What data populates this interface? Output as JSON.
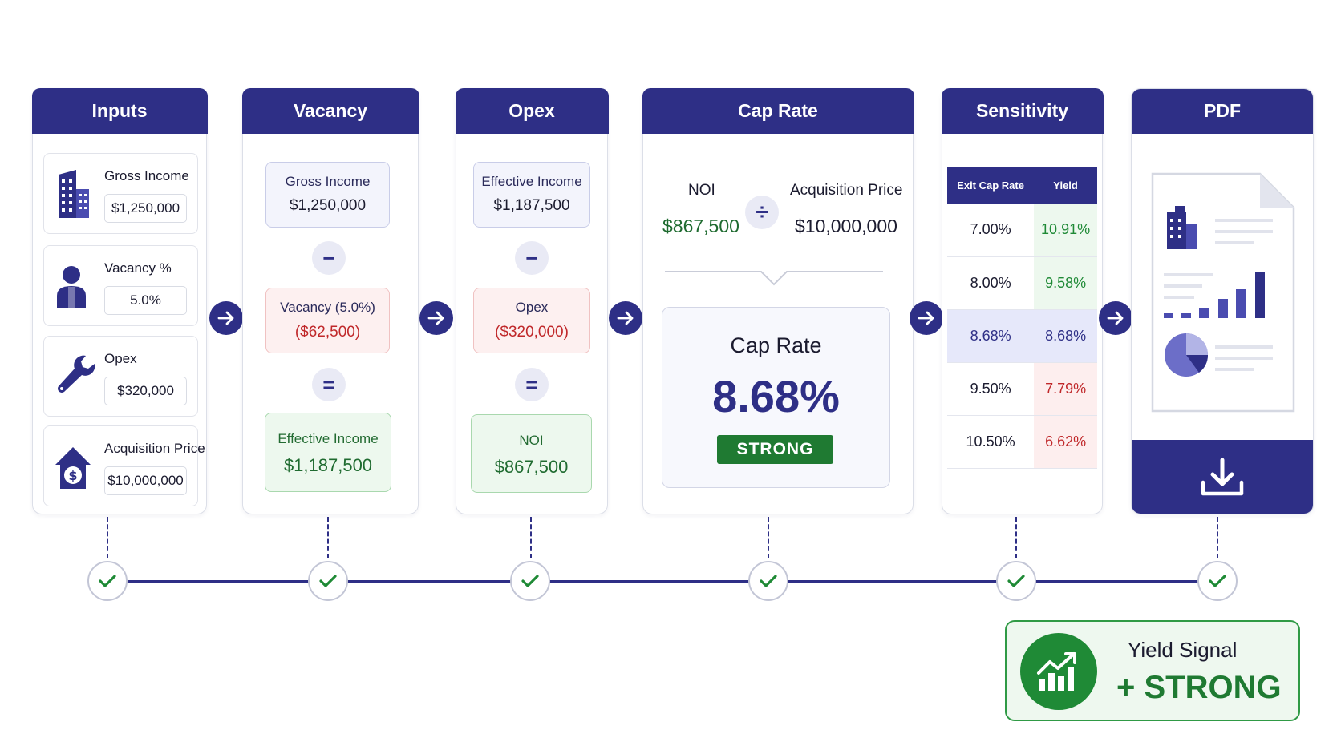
{
  "columns": {
    "inputs": "Inputs",
    "vacancy": "Vacancy",
    "opex": "Opex",
    "cap_rate": "Cap Rate",
    "sensitivity": "Sensitivity",
    "pdf": "PDF"
  },
  "inputs": [
    {
      "label": "Gross Income",
      "value": "$1,250,000",
      "icon": "building-icon"
    },
    {
      "label": "Vacancy %",
      "value": "5.0%",
      "icon": "person-icon"
    },
    {
      "label": "Opex",
      "value": "$320,000",
      "icon": "wrench-icon"
    },
    {
      "label": "Acquisition Price",
      "value": "$10,000,000",
      "icon": "house-dollar-icon"
    }
  ],
  "vacancy": {
    "gross_label": "Gross Income",
    "gross_value": "$1,250,000",
    "op1": "−",
    "vac_label": "Vacancy (5.0%)",
    "vac_value": "($62,500)",
    "op2": "=",
    "eff_label": "Effective Income",
    "eff_value": "$1,187,500"
  },
  "opex": {
    "eff_label": "Effective Income",
    "eff_value": "$1,187,500",
    "op1": "−",
    "opex_label": "Opex",
    "opex_value": "($320,000)",
    "op2": "=",
    "noi_label": "NOI",
    "noi_value": "$867,500"
  },
  "cap_rate": {
    "noi_label": "NOI",
    "noi_value": "$867,500",
    "divide": "÷",
    "price_label": "Acquisition Price",
    "price_value": "$10,000,000",
    "result_label": "Cap Rate",
    "result_value": "8.68%",
    "rating": "STRONG"
  },
  "sensitivity": {
    "headers": [
      "Exit Cap Rate",
      "Yield"
    ],
    "rows": [
      {
        "cap": "7.00%",
        "yield": "10.91%",
        "tone": "g"
      },
      {
        "cap": "8.00%",
        "yield": "9.58%",
        "tone": "g"
      },
      {
        "cap": "8.68%",
        "yield": "8.68%",
        "tone": "hl"
      },
      {
        "cap": "9.50%",
        "yield": "7.79%",
        "tone": "r"
      },
      {
        "cap": "10.50%",
        "yield": "6.62%",
        "tone": "r"
      }
    ]
  },
  "pdf": {
    "icon": "download-icon"
  },
  "signal": {
    "title": "Yield Signal",
    "value": "+ STRONG",
    "icon": "growth-chart-icon"
  },
  "colors": {
    "primary": "#2e2f86",
    "positive": "#1f8a36",
    "negative": "#c0282a"
  }
}
